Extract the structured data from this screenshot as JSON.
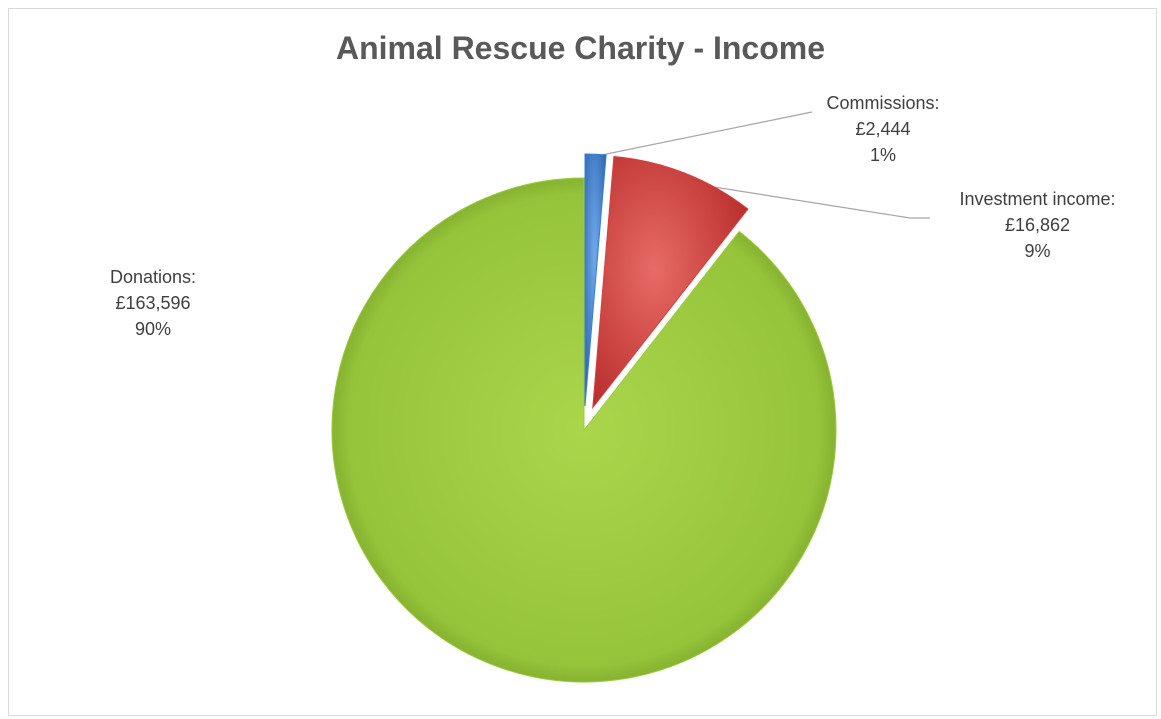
{
  "chart_data": {
    "type": "pie",
    "title": "Animal Rescue Charity - Income",
    "slices": [
      {
        "name": "Commissions",
        "label": "Commissions:",
        "value": 2444,
        "value_text": "£2,444",
        "percent_text": "1%",
        "color": "#3a7dd1",
        "exploded": true
      },
      {
        "name": "Investment income",
        "label": "Investment income:",
        "value": 16862,
        "value_text": "£16,862",
        "percent_text": "9%",
        "color": "#d7403d",
        "exploded": true
      },
      {
        "name": "Donations",
        "label": "Donations:",
        "value": 163596,
        "value_text": "£163,596",
        "percent_text": "90%",
        "color": "#9ccc3c",
        "exploded": false
      }
    ],
    "start_angle": "12 o'clock",
    "direction": "clockwise",
    "data_labels": "category, value, percentage",
    "leader_lines": true
  }
}
